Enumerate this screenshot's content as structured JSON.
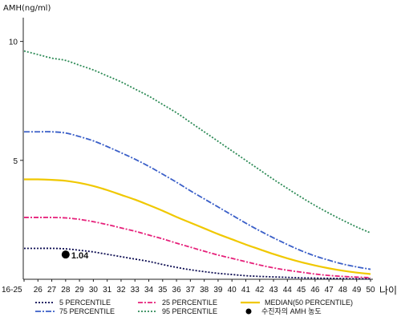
{
  "chart_data": {
    "type": "line",
    "ylabel": "AMH(ng/ml)",
    "xlabel": "나이",
    "ylim": [
      0,
      11
    ],
    "yticks": [
      5,
      10
    ],
    "categories": [
      "16-25",
      "26",
      "27",
      "28",
      "29",
      "30",
      "31",
      "32",
      "33",
      "34",
      "35",
      "36",
      "37",
      "38",
      "39",
      "40",
      "41",
      "42",
      "43",
      "44",
      "45",
      "46",
      "47",
      "48",
      "49",
      "50"
    ],
    "series": [
      {
        "name": "5 PERCENTILE",
        "color": "#0a0a50",
        "dash": "2,2",
        "values": [
          1.3,
          1.3,
          1.3,
          1.28,
          1.22,
          1.15,
          1.05,
          0.95,
          0.85,
          0.75,
          0.62,
          0.5,
          0.4,
          0.32,
          0.25,
          0.2,
          0.15,
          0.12,
          0.1,
          0.08,
          0.06,
          0.05,
          0.04,
          0.03,
          0.02,
          0.02
        ]
      },
      {
        "name": "25 PERCENTILE",
        "color": "#e6207a",
        "dash": "6,2,2,2",
        "values": [
          2.6,
          2.6,
          2.6,
          2.58,
          2.52,
          2.42,
          2.3,
          2.16,
          2.02,
          1.86,
          1.7,
          1.52,
          1.35,
          1.18,
          1.02,
          0.88,
          0.74,
          0.6,
          0.48,
          0.38,
          0.3,
          0.22,
          0.16,
          0.12,
          0.09,
          0.07
        ]
      },
      {
        "name": "MEDIAN(50 PERCENTILE)",
        "color": "#f0c800",
        "dash": "",
        "values": [
          4.2,
          4.2,
          4.18,
          4.14,
          4.05,
          3.92,
          3.75,
          3.55,
          3.35,
          3.12,
          2.88,
          2.62,
          2.38,
          2.14,
          1.9,
          1.68,
          1.46,
          1.26,
          1.06,
          0.88,
          0.72,
          0.58,
          0.46,
          0.36,
          0.28,
          0.22
        ]
      },
      {
        "name": "75 PERCENTILE",
        "color": "#3a5fc8",
        "dash": "7,2,2,2",
        "values": [
          6.2,
          6.2,
          6.2,
          6.15,
          6.0,
          5.82,
          5.58,
          5.32,
          5.05,
          4.75,
          4.42,
          4.08,
          3.72,
          3.38,
          3.04,
          2.7,
          2.36,
          2.04,
          1.74,
          1.46,
          1.2,
          0.98,
          0.8,
          0.64,
          0.52,
          0.42
        ]
      },
      {
        "name": "95 PERCENTILE",
        "color": "#2e8b57",
        "dash": "2,2",
        "values": [
          9.6,
          9.45,
          9.3,
          9.2,
          9.0,
          8.8,
          8.55,
          8.3,
          8.0,
          7.7,
          7.35,
          7.0,
          6.6,
          6.2,
          5.8,
          5.4,
          5.0,
          4.6,
          4.2,
          3.82,
          3.45,
          3.1,
          2.78,
          2.48,
          2.2,
          1.95
        ]
      }
    ],
    "marker": {
      "name": "수진자의 AMH 농도",
      "x": "28",
      "y": 1.04,
      "label": "1.04"
    },
    "legend_position": "bottom",
    "grid": false
  }
}
